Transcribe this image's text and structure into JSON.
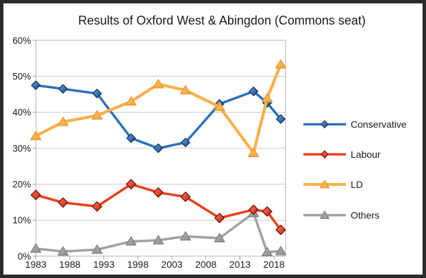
{
  "frame": {
    "border_color": "#2b2b2b",
    "background": "#ffffff"
  },
  "chart_data": {
    "type": "line",
    "title": "Results of Oxford West & Abingdon (Commons seat)",
    "xlabel": "",
    "ylabel": "",
    "x": [
      1983,
      1987,
      1992,
      1997,
      2001,
      2005,
      2010,
      2015,
      2017,
      2019
    ],
    "series": [
      {
        "name": "Conservative",
        "line_style": "dotted",
        "marker": "diamond",
        "color": "#2d6fb9",
        "marker_fill_light": "#6ea6e2",
        "marker_fill_dark": "#17457f",
        "marker_stroke": "#123a6d",
        "values": [
          47.5,
          46.5,
          45.2,
          32.8,
          30.0,
          31.6,
          42.3,
          45.8,
          42.6,
          38.1
        ]
      },
      {
        "name": "Labour",
        "line_style": "solid",
        "marker": "diamond",
        "color": "#e8421c",
        "marker_fill_light": "#ff7a5c",
        "marker_fill_dark": "#c32110",
        "marker_stroke": "#7e130a",
        "values": [
          17.0,
          14.9,
          13.8,
          20.0,
          17.7,
          16.5,
          10.6,
          12.9,
          12.4,
          7.3
        ]
      },
      {
        "name": "LD",
        "line_style": "solid",
        "marker": "triangle",
        "color": "#fbb04a",
        "marker_fill_light": "#fcc068",
        "marker_fill_dark": "#f5a73b",
        "marker_stroke": "#e8992f",
        "values": [
          33.4,
          37.3,
          39.1,
          43.0,
          47.8,
          46.1,
          41.5,
          28.7,
          43.9,
          53.3
        ]
      },
      {
        "name": "Others",
        "line_style": "solid",
        "marker": "triangle",
        "color": "#a2a2a2",
        "marker_fill_light": "#b5b5b5",
        "marker_fill_dark": "#8f8f8f",
        "marker_stroke": "#848484",
        "values": [
          2.1,
          1.3,
          1.8,
          4.1,
          4.4,
          5.5,
          5.0,
          12.0,
          1.1,
          1.4
        ]
      }
    ],
    "x_ticks": [
      "1983",
      "1988",
      "1993",
      "1998",
      "2003",
      "2008",
      "2013",
      "2018"
    ],
    "y_ticks": [
      "0%",
      "10%",
      "20%",
      "30%",
      "40%",
      "50%",
      "60%"
    ],
    "ylim": [
      0,
      60
    ],
    "xlim": [
      1983,
      2019.7
    ],
    "grid": "horizontal",
    "legend_position": "right"
  },
  "style_colors": {
    "grid": "#c9c9c9",
    "plot_border": "#b3b3b3",
    "tick": "#9a9a9a",
    "text": "#1a1a1a"
  }
}
